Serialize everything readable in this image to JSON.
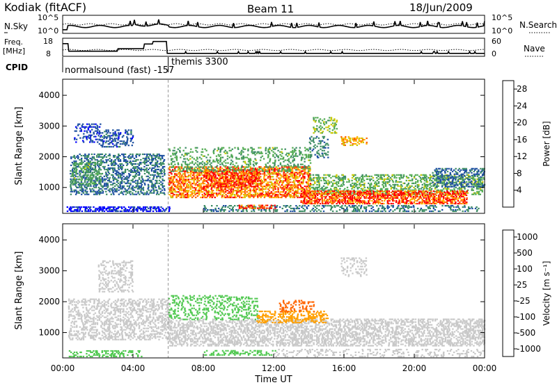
{
  "header": {
    "station": "Kodiak (fitACF)",
    "beam": "Beam 11",
    "date": "18/Jun/2009"
  },
  "strips": {
    "nsky_label": "N.Sky",
    "nsky_ticks": [
      "10^5",
      "10^0"
    ],
    "nsearch_label": "N.Search",
    "nsearch_ticks": [
      "10^5",
      "10^0"
    ],
    "freq_label_1": "Freq.",
    "freq_label_2": "[MHz]",
    "freq_ticks": [
      "18",
      "8"
    ],
    "nave_label": "Nave",
    "nave_ticks": [
      "60",
      "0"
    ],
    "cpid_label": "CPID",
    "cpid_entries": [
      {
        "text": "normalsound (fast) -157",
        "start_hour": 0
      },
      {
        "text": "themis 3300",
        "start_hour": 6
      }
    ]
  },
  "colors": {
    "power_scale": [
      "#0000ff",
      "#1e50a0",
      "#3c8c64",
      "#50aa50",
      "#c8c800",
      "#ffb400",
      "#ff6400",
      "#ff0000"
    ],
    "velocity_scale": [
      "#3232c8",
      "#2878b4",
      "#50c850",
      "#c8c8c8",
      "#c8c8c8",
      "#ffa000",
      "#ff6400",
      "#ff0000"
    ]
  },
  "chart_data": [
    {
      "type": "heatmap",
      "panel": "power",
      "xlabel": "Time UT",
      "ylabel": "Slant Range [km]",
      "x_unit": "hour UT",
      "xlim": [
        0,
        24
      ],
      "ylim": [
        180,
        4500
      ],
      "x_ticks": [
        "00:00",
        "04:00",
        "08:00",
        "12:00",
        "16:00",
        "20:00",
        "00:00"
      ],
      "y_ticks": [
        1000,
        2000,
        3000,
        4000
      ],
      "colorbar_label": "Power [dB]",
      "colorbar_ticks": [
        "4",
        "8",
        "12",
        "16",
        "20",
        "24",
        "28"
      ],
      "colorbar_range": [
        0,
        30
      ],
      "regions": [
        {
          "t0": 0.2,
          "t1": 6,
          "r0": 200,
          "r1": 380,
          "value": 3,
          "density": 0.7
        },
        {
          "t0": 0.4,
          "t1": 5.7,
          "r0": 750,
          "r1": 2100,
          "value": 8,
          "density": 0.55
        },
        {
          "t0": 0.5,
          "t1": 2.2,
          "r0": 1100,
          "r1": 1800,
          "value": 13,
          "density": 0.45
        },
        {
          "t0": 2.0,
          "t1": 4.0,
          "r0": 2300,
          "r1": 2850,
          "value": 6,
          "density": 0.45
        },
        {
          "t0": 0.6,
          "t1": 2.2,
          "r0": 2450,
          "r1": 3050,
          "value": 5,
          "density": 0.35
        },
        {
          "t0": 6,
          "t1": 14,
          "r0": 650,
          "r1": 1650,
          "value": 25,
          "density": 0.7
        },
        {
          "t0": 8,
          "t1": 11,
          "r0": 1000,
          "r1": 1550,
          "value": 29,
          "density": 0.6
        },
        {
          "t0": 6,
          "t1": 14,
          "r0": 1500,
          "r1": 2300,
          "value": 13,
          "density": 0.35
        },
        {
          "t0": 14,
          "t1": 24,
          "r0": 750,
          "r1": 1400,
          "value": 14,
          "density": 0.5
        },
        {
          "t0": 13.5,
          "t1": 23,
          "r0": 450,
          "r1": 900,
          "value": 28,
          "density": 0.8
        },
        {
          "t0": 8,
          "t1": 23.8,
          "r0": 200,
          "r1": 420,
          "value": 9,
          "density": 0.45
        },
        {
          "t0": 10,
          "t1": 12,
          "r0": 300,
          "r1": 430,
          "value": 29,
          "density": 0.6
        },
        {
          "t0": 14,
          "t1": 15,
          "r0": 1950,
          "r1": 2650,
          "value": 9,
          "density": 0.35
        },
        {
          "t0": 15.8,
          "t1": 17.3,
          "r0": 2350,
          "r1": 2650,
          "value": 22,
          "density": 0.5
        },
        {
          "t0": 14.2,
          "t1": 15.5,
          "r0": 2750,
          "r1": 3250,
          "value": 15,
          "density": 0.35
        },
        {
          "t0": 21,
          "t1": 24,
          "r0": 1000,
          "r1": 1600,
          "value": 7,
          "density": 0.5
        }
      ]
    },
    {
      "type": "heatmap",
      "panel": "velocity",
      "xlabel": "Time UT",
      "ylabel": "Slant Range [km]",
      "x_unit": "hour UT",
      "xlim": [
        0,
        24
      ],
      "ylim": [
        180,
        4500
      ],
      "x_ticks": [
        "00:00",
        "04:00",
        "08:00",
        "12:00",
        "16:00",
        "20:00",
        "00:00"
      ],
      "y_ticks": [
        1000,
        2000,
        3000,
        4000
      ],
      "colorbar_label": "Velocity [m s⁻¹]",
      "colorbar_ticks": [
        "1000",
        "500",
        "100",
        "25",
        "-25",
        "-100",
        "-500",
        "-1000"
      ],
      "regions": [
        {
          "t0": 0.3,
          "t1": 6,
          "r0": 750,
          "r1": 2100,
          "value": 0,
          "density": 0.5
        },
        {
          "t0": 2.0,
          "t1": 4.0,
          "r0": 2300,
          "r1": 3300,
          "value": 0,
          "density": 0.35
        },
        {
          "t0": 0.3,
          "t1": 4.5,
          "r0": 200,
          "r1": 400,
          "value": 150,
          "density": 0.45
        },
        {
          "t0": 6,
          "t1": 24,
          "r0": 550,
          "r1": 1450,
          "value": 0,
          "density": 0.6
        },
        {
          "t0": 6,
          "t1": 11,
          "r0": 1400,
          "r1": 2200,
          "value": 150,
          "density": 0.35
        },
        {
          "t0": 8,
          "t1": 12,
          "r0": 250,
          "r1": 420,
          "value": 200,
          "density": 0.4
        },
        {
          "t0": 11,
          "t1": 15,
          "r0": 1300,
          "r1": 1700,
          "value": -200,
          "density": 0.5
        },
        {
          "t0": 12.3,
          "t1": 14.2,
          "r0": 1650,
          "r1": 2050,
          "value": -600,
          "density": 0.35
        },
        {
          "t0": 15.8,
          "t1": 17.3,
          "r0": 2800,
          "r1": 3400,
          "value": 0,
          "density": 0.4
        },
        {
          "t0": 12,
          "t1": 24,
          "r0": 200,
          "r1": 450,
          "value": 0,
          "density": 0.3
        }
      ]
    }
  ]
}
